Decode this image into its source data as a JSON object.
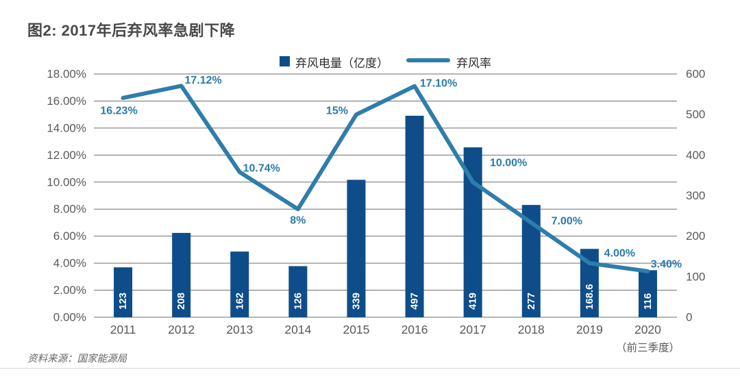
{
  "title": "图2: 2017年后弃风率急剧下降",
  "legend": {
    "bars_label": "弃风电量（亿度）",
    "line_label": "弃风率"
  },
  "source": "资料来源：国家能源局",
  "colors": {
    "bar": "#0e4d89",
    "line": "#2e7dab",
    "point_label": "#2b7aab",
    "bar_label": "#ffffff",
    "axis_text": "#595959",
    "grid": "#6e6e6e",
    "title_text": "#484848"
  },
  "chart_data": {
    "type": "bar",
    "note": "combo bar + line chart",
    "categories": [
      "2011",
      "2012",
      "2013",
      "2014",
      "2015",
      "2016",
      "2017",
      "2018",
      "2019",
      "2020"
    ],
    "x_sub_label": {
      "category_index": 9,
      "text": "（前三季度）"
    },
    "series": [
      {
        "name": "弃风电量（亿度）",
        "type": "bar",
        "axis": "right",
        "values": [
          123,
          208,
          162,
          126,
          339,
          497,
          419,
          277,
          168.6,
          116
        ],
        "labels": [
          "123",
          "208",
          "162",
          "126",
          "339",
          "497",
          "419",
          "277",
          "168.6",
          "116"
        ]
      },
      {
        "name": "弃风率",
        "type": "line",
        "axis": "left",
        "values": [
          16.23,
          17.12,
          10.74,
          8,
          15,
          17.1,
          10.0,
          7.0,
          4.0,
          3.4
        ],
        "labels": [
          "16.23%",
          "17.12%",
          "10.74%",
          "8%",
          "15%",
          "17.10%",
          "10.00%",
          "7.00%",
          "4.00%",
          "3.40%"
        ],
        "label_offsets": [
          [
            -6,
            19
          ],
          [
            32,
            -8
          ],
          [
            32,
            -5
          ],
          [
            0,
            17
          ],
          [
            -28,
            -5
          ],
          [
            35,
            -4
          ],
          [
            52,
            -28
          ],
          [
            52,
            -2
          ],
          [
            44,
            -14
          ],
          [
            27,
            -10
          ]
        ]
      }
    ],
    "left_axis": {
      "min": 0,
      "max": 18,
      "step": 2,
      "ticks": [
        "18.00%",
        "16.00%",
        "14.00%",
        "12.00%",
        "10.00%",
        "8.00%",
        "6.00%",
        "4.00%",
        "2.00%",
        "0.00%"
      ]
    },
    "right_axis": {
      "min": 0,
      "max": 600,
      "step": 100,
      "ticks": [
        "600",
        "500",
        "400",
        "300",
        "200",
        "100",
        "0"
      ]
    },
    "grid": true,
    "legend_position": "top"
  }
}
